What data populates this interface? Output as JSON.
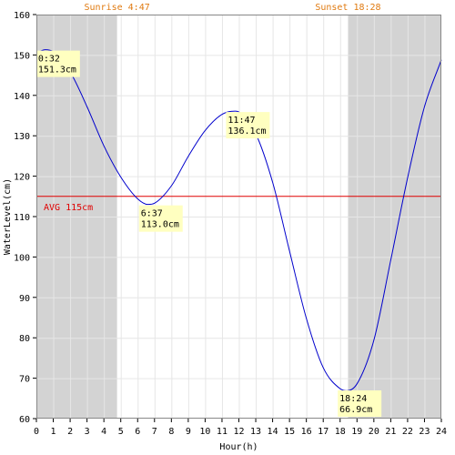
{
  "chart_data": {
    "type": "line",
    "xlabel": "Hour(h)",
    "ylabel": "WaterLevel(cm)",
    "xlim": [
      0,
      24
    ],
    "ylim": [
      60,
      160
    ],
    "x_ticks": [
      "0",
      "1",
      "2",
      "3",
      "4",
      "5",
      "6",
      "7",
      "8",
      "9",
      "10",
      "11",
      "12",
      "13",
      "14",
      "15",
      "16",
      "17",
      "18",
      "19",
      "20",
      "21",
      "22",
      "23",
      "24"
    ],
    "y_ticks": [
      "60",
      "70",
      "80",
      "90",
      "100",
      "110",
      "120",
      "130",
      "140",
      "150",
      "160"
    ],
    "grid": true,
    "sunrise": {
      "label": "Sunrise 4:47",
      "hour": 4.78
    },
    "sunset": {
      "label": "Sunset 18:28",
      "hour": 18.47
    },
    "average": {
      "label": "AVG 115cm",
      "value": 115,
      "color": "#e00000"
    },
    "line_color": "#0000cc",
    "night_color": "#d3d3d3",
    "series": [
      {
        "x": [
          0,
          0.53,
          1,
          2,
          3,
          4,
          5,
          6,
          6.62,
          7,
          8,
          9,
          10,
          11,
          11.78,
          12,
          13,
          14,
          15,
          16,
          17,
          18,
          18.4,
          19,
          20,
          21,
          22,
          23,
          24
        ],
        "values": [
          150.5,
          151.3,
          150.8,
          145.8,
          137.2,
          127.5,
          119.8,
          114.4,
          113.0,
          113.3,
          117.6,
          124.9,
          131.3,
          135.3,
          136.1,
          135.9,
          130.5,
          118.5,
          101.5,
          84.8,
          72.6,
          67.4,
          66.9,
          68.6,
          79.4,
          99.2,
          119.6,
          137.2,
          148.8
        ]
      }
    ],
    "annotations": [
      {
        "time": "0:32",
        "value": "151.3cm",
        "hour": 0.53,
        "level": 151.3
      },
      {
        "time": "6:37",
        "value": "113.0cm",
        "hour": 6.62,
        "level": 113.0
      },
      {
        "time": "11:47",
        "value": "136.1cm",
        "hour": 11.78,
        "level": 136.1
      },
      {
        "time": "18:24",
        "value": "66.9cm",
        "hour": 18.4,
        "level": 66.9
      }
    ]
  }
}
